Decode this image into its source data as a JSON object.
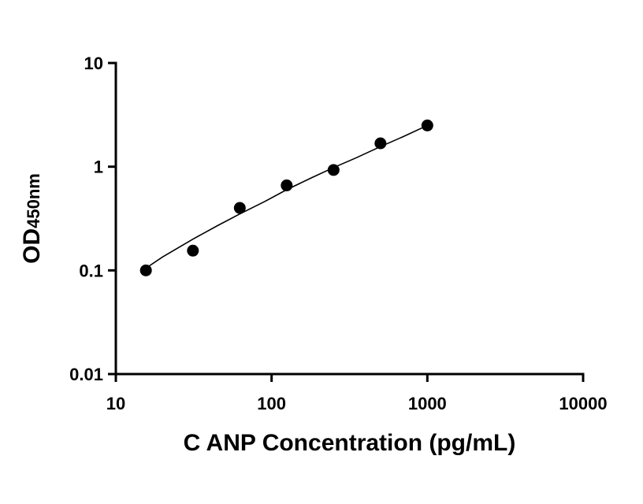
{
  "chart_data": {
    "type": "scatter",
    "title": "",
    "xlabel": "C ANP Concentration (pg/mL)",
    "ylabel_main": "OD",
    "ylabel_sub": "450nm",
    "x_scale": "log",
    "y_scale": "log",
    "xlim": [
      10,
      10000
    ],
    "ylim": [
      0.01,
      10
    ],
    "x_ticks": [
      10,
      100,
      1000,
      10000
    ],
    "x_tick_labels": [
      "10",
      "100",
      "1000",
      "10000"
    ],
    "y_ticks": [
      0.01,
      0.1,
      1,
      10
    ],
    "y_tick_labels": [
      "0.01",
      "0.1",
      "1",
      "10"
    ],
    "grid": false,
    "series": [
      {
        "x": [
          15.6,
          31.25,
          62.5,
          125,
          250,
          500,
          1000
        ],
        "y": [
          0.1,
          0.155,
          0.4,
          0.66,
          0.93,
          1.68,
          2.5
        ]
      }
    ],
    "fit_curve": {
      "x": [
        15.6,
        20,
        31.25,
        45,
        62.5,
        90,
        125,
        180,
        250,
        350,
        500,
        700,
        1000
      ],
      "y": [
        0.105,
        0.135,
        0.2,
        0.27,
        0.35,
        0.46,
        0.6,
        0.78,
        0.98,
        1.22,
        1.56,
        1.95,
        2.5
      ]
    }
  }
}
